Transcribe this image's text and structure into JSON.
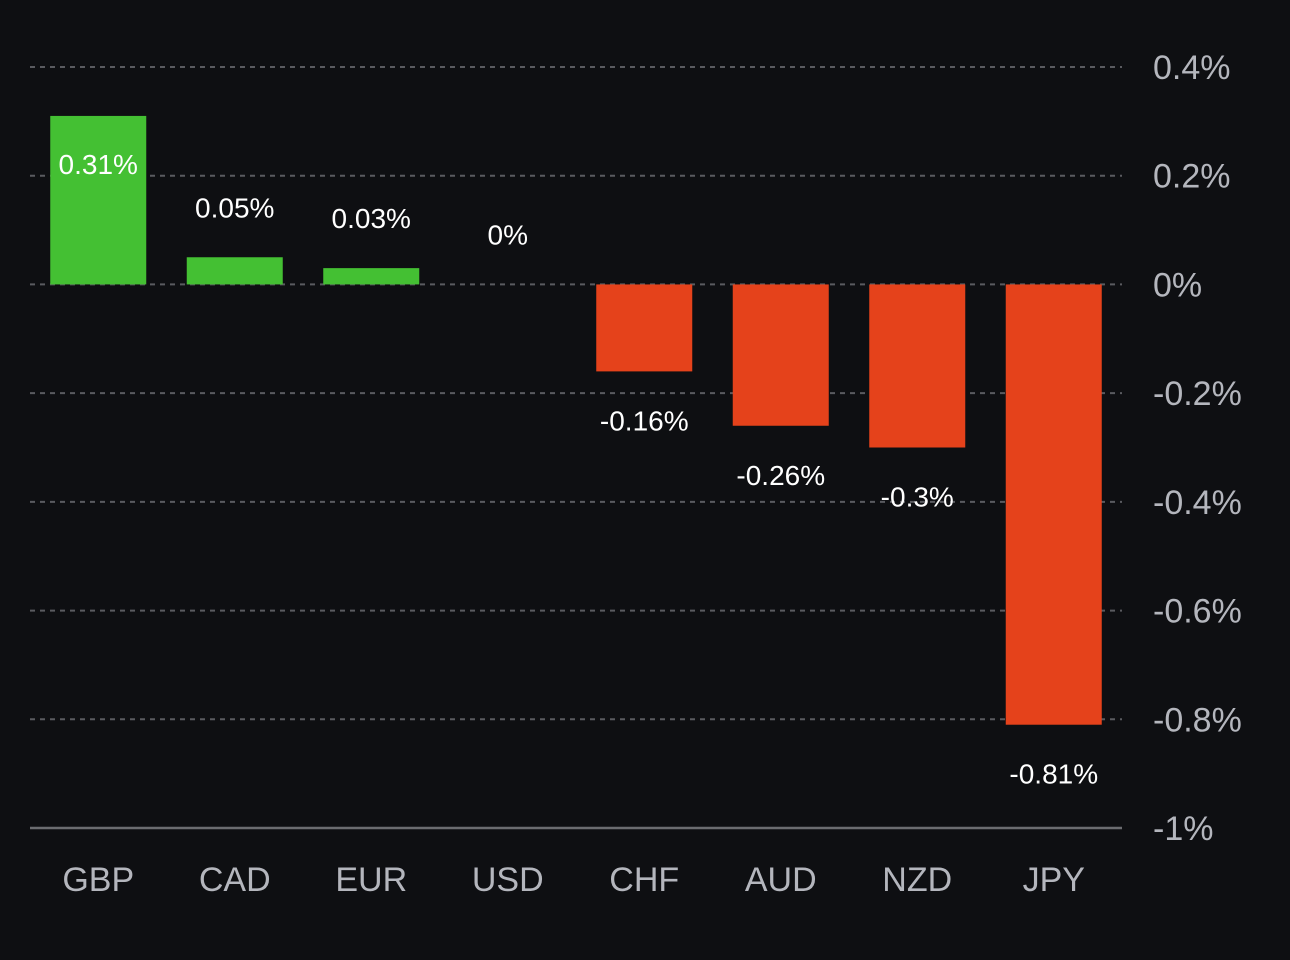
{
  "chart_data": {
    "type": "bar",
    "title": "",
    "xlabel": "",
    "ylabel": "",
    "categories": [
      "GBP",
      "CAD",
      "EUR",
      "USD",
      "CHF",
      "AUD",
      "NZD",
      "JPY"
    ],
    "values": [
      0.31,
      0.05,
      0.03,
      0,
      -0.16,
      -0.26,
      -0.3,
      -0.81
    ],
    "value_labels": [
      "0.31%",
      "0.05%",
      "0.03%",
      "0%",
      "-0.16%",
      "-0.26%",
      "-0.3%",
      "-0.81%"
    ],
    "ylim": [
      -1,
      0.4
    ],
    "y_ticks": [
      0.4,
      0.2,
      0,
      -0.2,
      -0.4,
      -0.6,
      -0.8,
      -1
    ],
    "y_tick_labels": [
      "0.4%",
      "0.2%",
      "0%",
      "-0.2%",
      "-0.4%",
      "-0.6%",
      "-0.8%",
      "-1%"
    ],
    "y_axis_side": "right",
    "grid": true,
    "grid_style": "dashed",
    "legend": "none",
    "colors": {
      "background": "#0e0f12",
      "positive": "#44c033",
      "negative": "#e5421b",
      "grid": "#5a5b60",
      "axis_line": "#6b6c70",
      "tick_label": "#b4b6bd",
      "value_label": "#ffffff"
    }
  }
}
